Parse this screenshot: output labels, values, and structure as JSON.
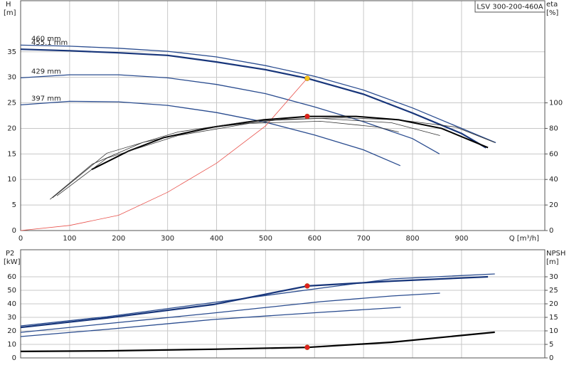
{
  "chart_data": [
    {
      "type": "line",
      "title": "LSV 300-200-460A",
      "y_label": "H",
      "y_unit": "[m]",
      "y2_label": "eta",
      "y2_unit": "[%]",
      "x_label": "Q [m³/h]",
      "xlim": [
        0,
        1070
      ],
      "xticks": [
        0,
        100,
        200,
        300,
        400,
        500,
        600,
        700,
        800,
        900
      ],
      "ylim": [
        0,
        45
      ],
      "yticks": [
        0,
        5,
        10,
        15,
        20,
        25,
        30,
        35
      ],
      "y2lim": [
        0,
        180
      ],
      "y2ticks": [
        0,
        20,
        40,
        60,
        80,
        100
      ],
      "grid": true,
      "series": [
        {
          "name": "460 mm",
          "color": "#2a4c8f",
          "width": 1.3,
          "x": [
            0,
            100,
            200,
            300,
            400,
            500,
            600,
            700,
            800,
            900,
            970
          ],
          "values": [
            36.3,
            36.1,
            35.7,
            35.1,
            34.0,
            32.3,
            30.2,
            27.5,
            24.0,
            20.0,
            17.2
          ]
        },
        {
          "name": "455.1 mm",
          "color": "#17357a",
          "width": 2.2,
          "x": [
            0,
            100,
            150,
            200,
            300,
            400,
            500,
            585,
            700,
            800,
            900,
            950
          ],
          "values": [
            35.5,
            35.2,
            35.0,
            34.8,
            34.3,
            33.0,
            31.5,
            29.8,
            26.7,
            23.0,
            19.0,
            16.2
          ]
        },
        {
          "name": "429 mm",
          "color": "#2a4c8f",
          "width": 1.3,
          "x": [
            0,
            100,
            200,
            300,
            400,
            500,
            600,
            700,
            800,
            855
          ],
          "values": [
            29.9,
            30.5,
            30.5,
            29.9,
            28.6,
            26.8,
            24.2,
            21.3,
            18.0,
            15.0
          ]
        },
        {
          "name": "397 mm",
          "color": "#2a4c8f",
          "width": 1.3,
          "x": [
            0,
            100,
            200,
            300,
            400,
            500,
            600,
            700,
            775
          ],
          "values": [
            24.6,
            25.3,
            25.2,
            24.5,
            23.1,
            21.2,
            18.7,
            15.8,
            12.7
          ]
        },
        {
          "color": "#e8504a",
          "width": 0.8,
          "x": [
            0,
            100,
            200,
            300,
            400,
            500,
            585
          ],
          "values": [
            0,
            1,
            3,
            7.5,
            13.2,
            20.5,
            29.8
          ]
        },
        {
          "color": "#333333",
          "width": 0.8,
          "axis": "y2",
          "x": [
            60,
            146,
            249,
            394,
            539,
            655,
            772,
            888,
            968
          ],
          "values": [
            24.4,
            52,
            69,
            81,
            87.2,
            88.3,
            86.7,
            81.1,
            68.9
          ]
        },
        {
          "color": "#000000",
          "width": 2,
          "axis": "y2",
          "x": [
            145,
            220,
            292,
            394,
            496,
            586,
            685,
            772,
            859,
            954
          ],
          "values": [
            47.8,
            62.2,
            72.8,
            81.1,
            86.7,
            89.4,
            89.4,
            86.7,
            80,
            65
          ]
        },
        {
          "color": "#333333",
          "width": 0.8,
          "axis": "y2",
          "x": [
            65,
            176,
            321,
            467,
            612,
            757,
            856
          ],
          "values": [
            25.6,
            60.6,
            77.2,
            85.6,
            87.8,
            84.4,
            74.4
          ]
        },
        {
          "color": "#333333",
          "width": 0.8,
          "axis": "y2",
          "x": [
            74,
            176,
            321,
            467,
            612,
            728,
            772
          ],
          "values": [
            27.2,
            56.7,
            74.4,
            83.9,
            85.6,
            81.1,
            77.2
          ]
        }
      ],
      "points": [
        {
          "x": 585,
          "y": 29.8,
          "color": "#f5c518"
        },
        {
          "x": 585,
          "y": 89.4,
          "axis": "y2",
          "color": "#e02020"
        }
      ]
    },
    {
      "type": "line",
      "y_label": "P2",
      "y_unit": "[kW]",
      "y2_label": "NPSH",
      "y2_unit": "[m]",
      "xlim": [
        0,
        1070
      ],
      "xticks": [
        0,
        100,
        200,
        300,
        400,
        500,
        600,
        700,
        800,
        900
      ],
      "ylim": [
        0,
        80
      ],
      "yticks": [
        0,
        10,
        20,
        30,
        40,
        50,
        60
      ],
      "y2lim": [
        0,
        40
      ],
      "y2ticks": [
        0,
        5,
        10,
        15,
        20,
        25,
        30
      ],
      "grid": true,
      "series": [
        {
          "color": "#2a4c8f",
          "width": 1.3,
          "x": [
            0,
            176,
            394,
            612,
            757,
            968
          ],
          "values": [
            23.7,
            30.5,
            41,
            51.6,
            58.4,
            62.1
          ]
        },
        {
          "color": "#17357a",
          "width": 2.2,
          "x": [
            0,
            176,
            394,
            586,
            757,
            954
          ],
          "values": [
            22.6,
            29.5,
            39.5,
            53.2,
            56.8,
            60
          ]
        },
        {
          "color": "#2a4c8f",
          "width": 1.3,
          "x": [
            0,
            176,
            394,
            612,
            757,
            856
          ],
          "values": [
            18.9,
            25.3,
            33.2,
            41.6,
            45.8,
            47.9
          ]
        },
        {
          "color": "#2a4c8f",
          "width": 1.3,
          "x": [
            0,
            176,
            394,
            612,
            776
          ],
          "values": [
            15.8,
            21.1,
            28.4,
            33.7,
            37.4
          ]
        },
        {
          "color": "#000000",
          "width": 2.2,
          "axis": "y2",
          "x": [
            0,
            176,
            394,
            586,
            757,
            968
          ],
          "values": [
            2.4,
            2.6,
            3.2,
            3.9,
            5.8,
            9.5
          ]
        }
      ],
      "points": [
        {
          "x": 585,
          "y": 53.2,
          "color": "#e02020"
        },
        {
          "x": 585,
          "y": 3.9,
          "axis": "y2",
          "color": "#e02020"
        }
      ]
    }
  ]
}
